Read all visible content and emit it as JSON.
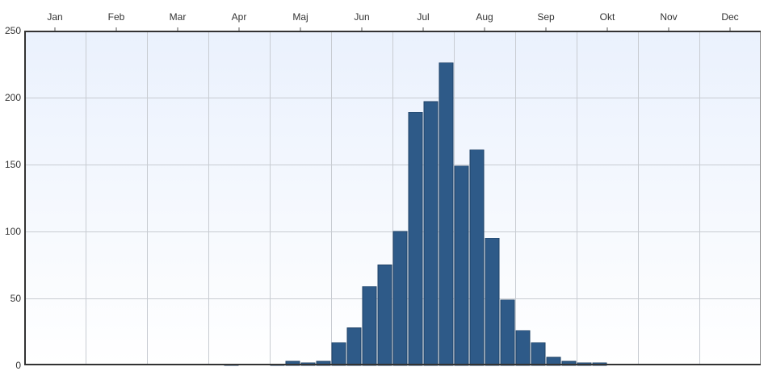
{
  "chart_data": {
    "type": "bar",
    "title": "",
    "xlabel": "",
    "ylabel": "",
    "months": [
      "Jan",
      "Feb",
      "Mar",
      "Apr",
      "Maj",
      "Jun",
      "Jul",
      "Aug",
      "Sep",
      "Okt",
      "Nov",
      "Dec"
    ],
    "x_axis_position": "top",
    "ylim": [
      0,
      250
    ],
    "y_ticks": [
      0,
      50,
      100,
      150,
      200,
      250
    ],
    "grid": true,
    "bar_color": "#2e5a88",
    "bin_unit": "week",
    "series": [
      {
        "values": [
          0,
          0,
          0,
          0,
          0,
          0,
          0,
          0,
          0,
          0,
          0,
          0,
          0,
          1,
          0,
          0,
          1,
          3,
          2,
          3,
          17,
          28,
          59,
          75,
          100,
          189,
          197,
          226,
          149,
          161,
          95,
          49,
          26,
          17,
          6,
          3,
          2,
          2,
          0,
          0,
          0,
          0,
          0,
          0,
          0,
          0,
          0,
          0
        ]
      }
    ]
  }
}
